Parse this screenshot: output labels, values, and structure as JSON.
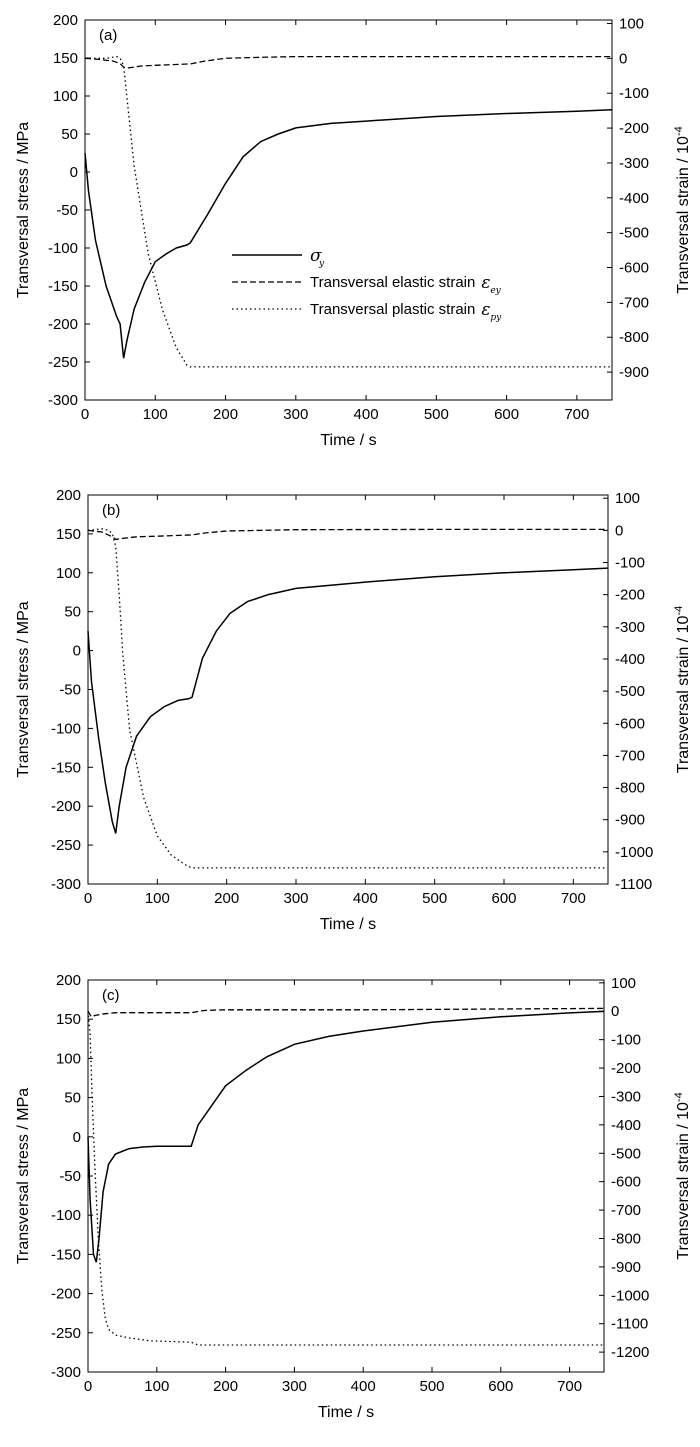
{
  "chart_data": [
    {
      "type": "line",
      "panel_label": "(a)",
      "xlabel": "Time / s",
      "ylabel_left": "Transversal stress / MPa",
      "ylabel_right": {
        "base": "Transversal strain / 10",
        "exp": "-4"
      },
      "xlim": [
        0,
        750
      ],
      "ylim_left": [
        -300,
        200
      ],
      "ylim_right": [
        -980,
        110
      ],
      "x_ticks": [
        0,
        100,
        200,
        300,
        400,
        500,
        600,
        700
      ],
      "y_ticks_left": [
        -300,
        -250,
        -200,
        -150,
        -100,
        -50,
        0,
        50,
        100,
        150,
        200
      ],
      "y_ticks_right": [
        -900,
        -800,
        -700,
        -600,
        -500,
        -400,
        -300,
        -200,
        -100,
        0,
        100
      ],
      "legend": {
        "entries": [
          {
            "symbol": "σ",
            "sub": "y",
            "label": ""
          },
          {
            "symbol": "ε",
            "sub": "ey",
            "label": "Transversal elastic strain"
          },
          {
            "symbol": "ε",
            "sub": "py",
            "label": "Transversal plastic strain"
          }
        ]
      },
      "series": [
        {
          "name": "sigma_y",
          "style": "solid",
          "axis": "left",
          "x": [
            0,
            5,
            15,
            30,
            45,
            50,
            55,
            60,
            70,
            85,
            100,
            115,
            130,
            145,
            150,
            175,
            200,
            225,
            250,
            275,
            300,
            350,
            400,
            500,
            600,
            700,
            750
          ],
          "y": [
            25,
            -25,
            -90,
            -150,
            -190,
            -200,
            -245,
            -220,
            -180,
            -145,
            -118,
            -108,
            -100,
            -96,
            -93,
            -55,
            -15,
            20,
            40,
            50,
            58,
            64,
            67,
            73,
            77,
            80,
            82
          ]
        },
        {
          "name": "elastic_strain",
          "style": "dashed",
          "axis": "right",
          "x": [
            0,
            20,
            40,
            50,
            55,
            60,
            80,
            100,
            150,
            170,
            200,
            250,
            300,
            400,
            500,
            600,
            700,
            750
          ],
          "y": [
            0,
            -3,
            -8,
            -15,
            -25,
            -28,
            -22,
            -20,
            -16,
            -8,
            0,
            3,
            5,
            5,
            5,
            5,
            5,
            5
          ]
        },
        {
          "name": "plastic_strain",
          "style": "dotted",
          "axis": "right",
          "x": [
            0,
            30,
            45,
            50,
            55,
            60,
            70,
            90,
            110,
            130,
            145,
            150,
            750
          ],
          "y": [
            0,
            0,
            5,
            0,
            -20,
            -120,
            -310,
            -560,
            -720,
            -830,
            -880,
            -885,
            -885
          ]
        }
      ]
    },
    {
      "type": "line",
      "panel_label": "(b)",
      "xlabel": "Time / s",
      "ylabel_left": "Transversal stress / MPa",
      "ylabel_right": {
        "base": "Transversal strain / 10",
        "exp": "-4"
      },
      "xlim": [
        0,
        750
      ],
      "ylim_left": [
        -300,
        200
      ],
      "ylim_right": [
        -1100,
        110
      ],
      "x_ticks": [
        0,
        100,
        200,
        300,
        400,
        500,
        600,
        700
      ],
      "y_ticks_left": [
        -300,
        -250,
        -200,
        -150,
        -100,
        -50,
        0,
        50,
        100,
        150,
        200
      ],
      "y_ticks_right": [
        -1100,
        -1000,
        -900,
        -800,
        -700,
        -600,
        -500,
        -400,
        -300,
        -200,
        -100,
        0,
        100
      ],
      "series": [
        {
          "name": "sigma_y",
          "style": "solid",
          "axis": "left",
          "x": [
            0,
            5,
            15,
            25,
            35,
            40,
            45,
            55,
            70,
            90,
            110,
            130,
            145,
            150,
            165,
            185,
            205,
            230,
            260,
            300,
            400,
            500,
            600,
            700,
            750
          ],
          "y": [
            25,
            -40,
            -110,
            -170,
            -220,
            -235,
            -200,
            -150,
            -110,
            -85,
            -72,
            -64,
            -62,
            -60,
            -10,
            25,
            48,
            63,
            72,
            80,
            88,
            95,
            100,
            104,
            106
          ]
        },
        {
          "name": "elastic_strain",
          "style": "dashed",
          "axis": "right",
          "x": [
            0,
            20,
            35,
            40,
            50,
            70,
            100,
            150,
            170,
            200,
            300,
            500,
            750
          ],
          "y": [
            0,
            -5,
            -20,
            -28,
            -25,
            -20,
            -18,
            -14,
            -8,
            -2,
            2,
            3,
            3
          ]
        },
        {
          "name": "plastic_strain",
          "style": "dotted",
          "axis": "right",
          "x": [
            0,
            20,
            30,
            35,
            40,
            45,
            50,
            60,
            80,
            100,
            120,
            140,
            150,
            750
          ],
          "y": [
            0,
            5,
            0,
            -10,
            -50,
            -200,
            -380,
            -620,
            -830,
            -950,
            -1010,
            -1040,
            -1050,
            -1050
          ]
        }
      ]
    },
    {
      "type": "line",
      "panel_label": "(c)",
      "xlabel": "Time / s",
      "ylabel_left": "Transversal stress / MPa",
      "ylabel_right": {
        "base": "Transversal strain / 10",
        "exp": "-4"
      },
      "xlim": [
        0,
        750
      ],
      "ylim_left": [
        -300,
        200
      ],
      "ylim_right": [
        -1270,
        110
      ],
      "x_ticks": [
        0,
        100,
        200,
        300,
        400,
        500,
        600,
        700
      ],
      "y_ticks_left": [
        -300,
        -250,
        -200,
        -150,
        -100,
        -50,
        0,
        50,
        100,
        150,
        200
      ],
      "y_ticks_right": [
        -1200,
        -1100,
        -1000,
        -900,
        -800,
        -700,
        -600,
        -500,
        -400,
        -300,
        -200,
        -100,
        0,
        100
      ],
      "series": [
        {
          "name": "sigma_y",
          "style": "solid",
          "axis": "left",
          "x": [
            0,
            3,
            8,
            12,
            16,
            22,
            30,
            40,
            60,
            80,
            100,
            120,
            145,
            150,
            160,
            180,
            200,
            230,
            260,
            300,
            350,
            400,
            500,
            600,
            700,
            750
          ],
          "y": [
            0,
            -80,
            -150,
            -160,
            -130,
            -70,
            -35,
            -22,
            -15,
            -13,
            -12,
            -12,
            -12,
            -12,
            15,
            40,
            65,
            85,
            102,
            118,
            128,
            135,
            146,
            153,
            158,
            160
          ]
        },
        {
          "name": "elastic_strain",
          "style": "dashed",
          "axis": "right",
          "x": [
            0,
            5,
            10,
            20,
            40,
            60,
            100,
            150,
            170,
            200,
            400,
            600,
            750
          ],
          "y": [
            0,
            -20,
            -15,
            -10,
            -5,
            -5,
            -5,
            -5,
            3,
            5,
            5,
            8,
            10
          ]
        },
        {
          "name": "plastic_strain",
          "style": "dotted",
          "axis": "right",
          "x": [
            0,
            3,
            6,
            10,
            15,
            20,
            25,
            30,
            40,
            60,
            90,
            150,
            160,
            750
          ],
          "y": [
            0,
            -80,
            -300,
            -550,
            -800,
            -980,
            -1080,
            -1120,
            -1140,
            -1150,
            -1160,
            -1165,
            -1175,
            -1175
          ]
        }
      ]
    }
  ]
}
